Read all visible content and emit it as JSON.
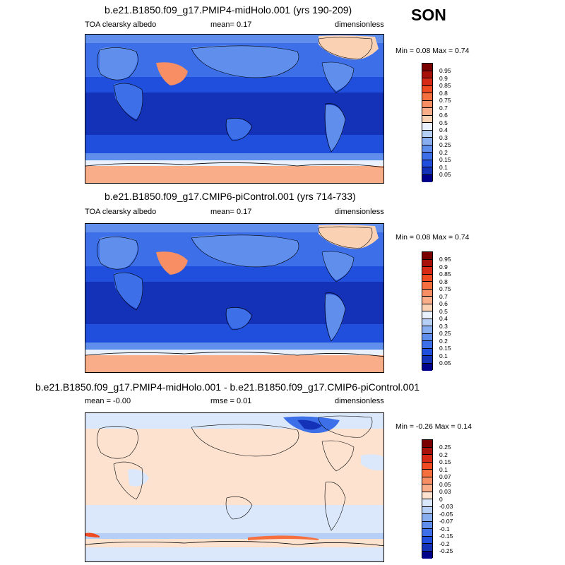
{
  "season": "SON",
  "panels": [
    {
      "title": "b.e21.B1850.f09_g17.PMIP4-midHolo.001 (yrs 190-209)",
      "left_label": "TOA clearsky albedo",
      "center_label": "mean=   0.17",
      "right_label": "dimensionless",
      "minmax": "Min =   0.08 Max =   0.74",
      "colorbar": {
        "labels": [
          "0.95",
          "0.9",
          "0.85",
          "0.8",
          "0.75",
          "0.7",
          "0.6",
          "0.5",
          "0.4",
          "0.3",
          "0.25",
          "0.2",
          "0.15",
          "0.1",
          "0.05"
        ],
        "colors": [
          "#7a0000",
          "#a8110a",
          "#d62a16",
          "#ef4a22",
          "#f66f3f",
          "#f88e63",
          "#f9ad88",
          "#fbd1b4",
          "#e8f1fd",
          "#b5cff6",
          "#88aef0",
          "#5f8eec",
          "#3d6fe8",
          "#1f4fdc",
          "#1432b8",
          "#00008a"
        ]
      }
    },
    {
      "title": "b.e21.B1850.f09_g17.CMIP6-piControl.001 (yrs 714-733)",
      "left_label": "TOA clearsky albedo",
      "center_label": "mean=   0.17",
      "right_label": "dimensionless",
      "minmax": "Min =   0.08 Max =   0.74",
      "colorbar": {
        "labels": [
          "0.95",
          "0.9",
          "0.85",
          "0.8",
          "0.75",
          "0.7",
          "0.6",
          "0.5",
          "0.4",
          "0.3",
          "0.25",
          "0.2",
          "0.15",
          "0.1",
          "0.05"
        ],
        "colors": [
          "#7a0000",
          "#a8110a",
          "#d62a16",
          "#ef4a22",
          "#f66f3f",
          "#f88e63",
          "#f9ad88",
          "#fbd1b4",
          "#e8f1fd",
          "#b5cff6",
          "#88aef0",
          "#5f8eec",
          "#3d6fe8",
          "#1f4fdc",
          "#1432b8",
          "#00008a"
        ]
      }
    },
    {
      "title": "b.e21.B1850.f09_g17.PMIP4-midHolo.001 - b.e21.B1850.f09_g17.CMIP6-piControl.001",
      "left_label": "mean =  -0.00",
      "center_label": "rmse =   0.01",
      "right_label": "dimensionless",
      "minmax": "Min =  -0.26 Max =   0.14",
      "colorbar": {
        "labels": [
          "0.25",
          "0.2",
          "0.15",
          "0.1",
          "0.07",
          "0.05",
          "0.03",
          "0",
          "-0.03",
          "-0.05",
          "-0.07",
          "-0.1",
          "-0.15",
          "-0.2",
          "-0.25"
        ],
        "colors": [
          "#7a0000",
          "#a8110a",
          "#d62a16",
          "#ef4a22",
          "#f66f3f",
          "#f88e63",
          "#f9ad88",
          "#fde2cf",
          "#dbe8fb",
          "#b5cff6",
          "#88aef0",
          "#5f8eec",
          "#3d6fe8",
          "#1f4fdc",
          "#1432b8",
          "#00008a"
        ]
      }
    }
  ]
}
